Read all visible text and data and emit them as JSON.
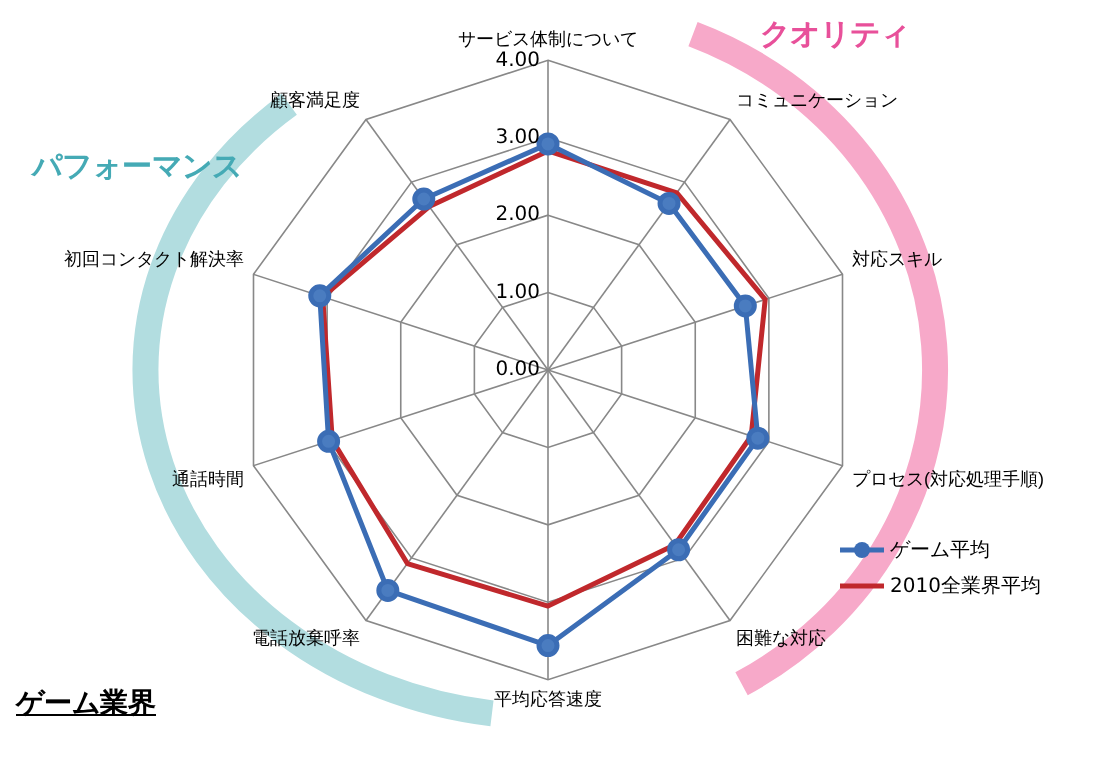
{
  "chart_data": {
    "type": "radar",
    "title": "ゲーム業界",
    "annotations": [
      "クオリティ",
      "パフォーマンス"
    ],
    "categories": [
      "サービス体制について",
      "コミュニケーション",
      "対応スキル",
      "プロセス(対応処理手順)",
      "困難な対応",
      "平均応答速度",
      "電話放棄呼率",
      "通話時間",
      "初回コンタクト解決率",
      "顧客満足度"
    ],
    "series": [
      {
        "name": "ゲーム平均",
        "color": "#3b6db5",
        "marker": "circle",
        "values": [
          2.92,
          2.66,
          2.68,
          2.85,
          2.87,
          3.56,
          3.52,
          2.98,
          3.1,
          2.73
        ]
      },
      {
        "name": "2010全業界平均",
        "color": "#c0282c",
        "marker": "none",
        "values": [
          2.83,
          2.83,
          2.95,
          2.76,
          2.79,
          3.05,
          3.09,
          2.93,
          3.06,
          2.61
        ]
      }
    ],
    "ylim": [
      0,
      4
    ],
    "yticks": [
      {
        "value": 0,
        "label": "0.00"
      },
      {
        "value": 1,
        "label": "1.00"
      },
      {
        "value": 2,
        "label": "2.00"
      },
      {
        "value": 3,
        "label": "3.00"
      },
      {
        "value": 4,
        "label": "4.00"
      }
    ],
    "grid": true,
    "legend": "right"
  }
}
